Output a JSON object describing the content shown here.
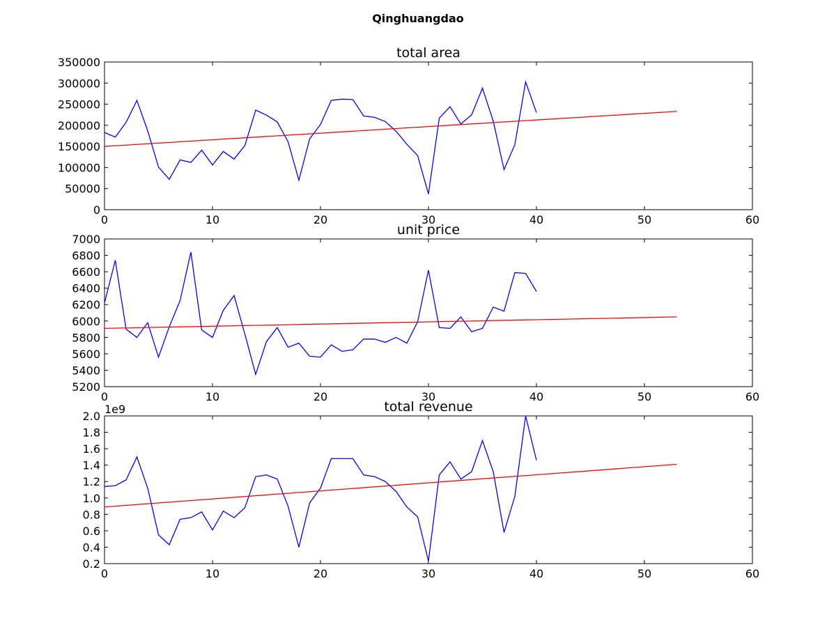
{
  "figure": {
    "suptitle": "Qinghuangdao"
  },
  "colors": {
    "data_line": "#0000ff",
    "trend_line": "#ff0000"
  },
  "chart_data": [
    {
      "type": "line",
      "title": "total area",
      "xlabel": "",
      "ylabel": "",
      "xlim": [
        0,
        60
      ],
      "ylim": [
        0,
        350000
      ],
      "xticks": [
        0,
        10,
        20,
        30,
        40,
        50,
        60
      ],
      "yticks": [
        0,
        50000,
        100000,
        150000,
        200000,
        250000,
        300000,
        350000
      ],
      "ytick_labels": [
        "0",
        "50000",
        "100000",
        "150000",
        "200000",
        "250000",
        "300000",
        "350000"
      ],
      "offset_text": "",
      "grid": false,
      "series": [
        {
          "x": [
            0,
            1,
            2,
            3,
            4,
            5,
            6,
            7,
            8,
            9,
            10,
            11,
            12,
            13,
            14,
            15,
            16,
            17,
            18,
            19,
            20,
            21,
            22,
            23,
            24,
            25,
            26,
            27,
            28,
            29,
            30,
            31,
            32,
            33,
            34,
            35,
            36,
            37,
            38,
            39,
            40
          ],
          "values": [
            183000,
            172000,
            207000,
            259000,
            187000,
            101000,
            72000,
            118000,
            112000,
            141000,
            106000,
            138000,
            120000,
            152000,
            236000,
            224000,
            208000,
            161000,
            70000,
            168000,
            202000,
            259000,
            262000,
            261000,
            222000,
            219000,
            209000,
            186000,
            155000,
            128000,
            37000,
            217000,
            244000,
            203000,
            225000,
            288000,
            210000,
            95000,
            154000,
            303000,
            230000
          ],
          "color": "#0000ff"
        },
        {
          "x": [
            0,
            53
          ],
          "values": [
            150000,
            233000
          ],
          "color": "#ff0000"
        }
      ]
    },
    {
      "type": "line",
      "title": "unit price",
      "xlabel": "",
      "ylabel": "",
      "xlim": [
        0,
        60
      ],
      "ylim": [
        5200,
        7000
      ],
      "xticks": [
        0,
        10,
        20,
        30,
        40,
        50,
        60
      ],
      "yticks": [
        5200,
        5400,
        5600,
        5800,
        6000,
        6200,
        6400,
        6600,
        6800,
        7000
      ],
      "ytick_labels": [
        "5200",
        "5400",
        "5600",
        "5800",
        "6000",
        "6200",
        "6400",
        "6600",
        "6800",
        "7000"
      ],
      "offset_text": "",
      "grid": false,
      "series": [
        {
          "x": [
            0,
            1,
            2,
            3,
            4,
            5,
            6,
            7,
            8,
            9,
            10,
            11,
            12,
            13,
            14,
            15,
            16,
            17,
            18,
            19,
            20,
            21,
            22,
            23,
            24,
            25,
            26,
            27,
            28,
            29,
            30,
            31,
            32,
            33,
            34,
            35,
            36,
            37,
            38,
            39,
            40
          ],
          "values": [
            6220,
            6740,
            5900,
            5800,
            5980,
            5560,
            5930,
            6250,
            6840,
            5890,
            5800,
            6130,
            6310,
            5840,
            5350,
            5750,
            5920,
            5680,
            5730,
            5570,
            5560,
            5710,
            5630,
            5650,
            5780,
            5780,
            5740,
            5800,
            5730,
            5990,
            6620,
            5920,
            5910,
            6050,
            5870,
            5910,
            6170,
            6120,
            6590,
            6580,
            6360
          ],
          "color": "#0000ff"
        },
        {
          "x": [
            0,
            53
          ],
          "values": [
            5910,
            6050
          ],
          "color": "#ff0000"
        }
      ]
    },
    {
      "type": "line",
      "title": "total revenue",
      "xlabel": "",
      "ylabel": "",
      "xlim": [
        0,
        60
      ],
      "ylim": [
        200000000,
        2000000000
      ],
      "xticks": [
        0,
        10,
        20,
        30,
        40,
        50,
        60
      ],
      "yticks": [
        200000000,
        400000000,
        600000000,
        800000000,
        1000000000,
        1200000000,
        1400000000,
        1600000000,
        1800000000,
        2000000000
      ],
      "ytick_labels": [
        "0.2",
        "0.4",
        "0.6",
        "0.8",
        "1.0",
        "1.2",
        "1.4",
        "1.6",
        "1.8",
        "2.0"
      ],
      "offset_text": "1e9",
      "grid": false,
      "series": [
        {
          "x": [
            0,
            1,
            2,
            3,
            4,
            5,
            6,
            7,
            8,
            9,
            10,
            11,
            12,
            13,
            14,
            15,
            16,
            17,
            18,
            19,
            20,
            21,
            22,
            23,
            24,
            25,
            26,
            27,
            28,
            29,
            30,
            31,
            32,
            33,
            34,
            35,
            36,
            37,
            38,
            39,
            40
          ],
          "values": [
            1140000000,
            1150000000,
            1220000000,
            1500000000,
            1120000000,
            550000000,
            430000000,
            740000000,
            760000000,
            830000000,
            610000000,
            840000000,
            760000000,
            880000000,
            1260000000,
            1280000000,
            1230000000,
            900000000,
            400000000,
            940000000,
            1120000000,
            1480000000,
            1480000000,
            1480000000,
            1280000000,
            1260000000,
            1200000000,
            1080000000,
            890000000,
            770000000,
            230000000,
            1280000000,
            1440000000,
            1230000000,
            1320000000,
            1700000000,
            1320000000,
            580000000,
            1020000000,
            2000000000,
            1460000000
          ],
          "color": "#0000ff"
        },
        {
          "x": [
            0,
            53
          ],
          "values": [
            890000000,
            1410000000
          ],
          "color": "#ff0000"
        }
      ]
    }
  ]
}
